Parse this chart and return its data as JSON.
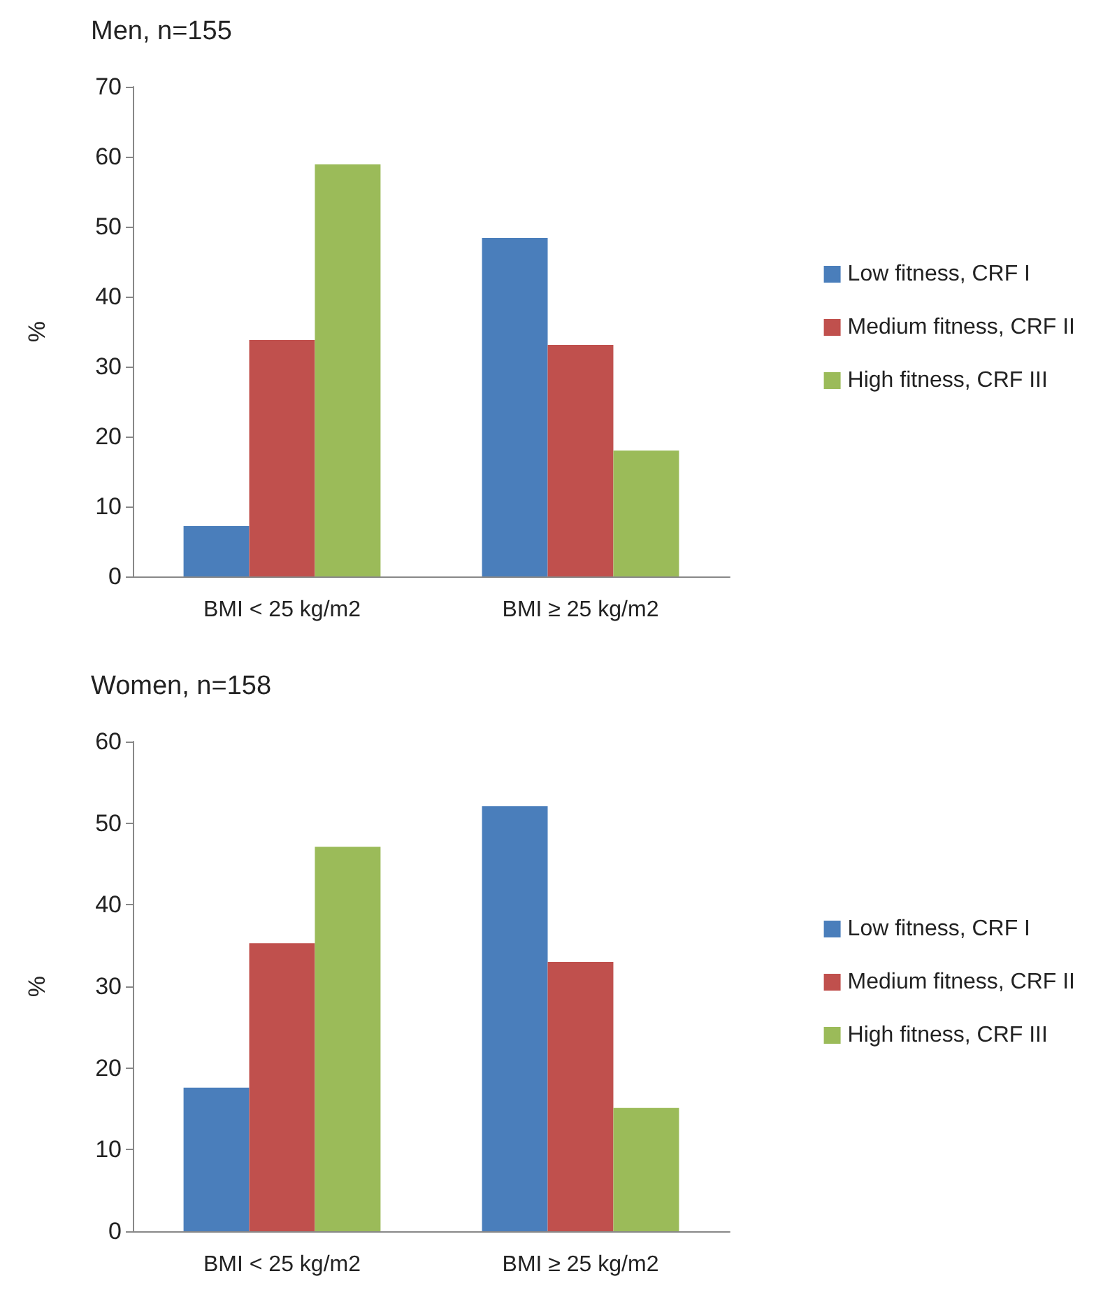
{
  "chart_data": [
    {
      "type": "bar",
      "title": "Men, n=155",
      "ylabel": "%",
      "categories": [
        "BMI < 25 kg/m2",
        "BMI ≥ 25 kg/m2"
      ],
      "series": [
        {
          "name": "Low fitness, CRF I",
          "color": "#4a7ebb",
          "values": [
            7.2,
            48.4
          ]
        },
        {
          "name": "Medium fitness, CRF II",
          "color": "#c0504d",
          "values": [
            33.8,
            33.1
          ]
        },
        {
          "name": "High fitness, CRF III",
          "color": "#9bbb59",
          "values": [
            58.9,
            18.0
          ]
        }
      ],
      "ylim": [
        0,
        70
      ],
      "yticks": [
        0,
        10,
        20,
        30,
        40,
        50,
        60,
        70
      ],
      "grid": false,
      "legend": "right"
    },
    {
      "type": "bar",
      "title": "Women, n=158",
      "ylabel": "%",
      "categories": [
        "BMI < 25 kg/m2",
        "BMI ≥ 25 kg/m2"
      ],
      "series": [
        {
          "name": "Low fitness, CRF I",
          "color": "#4a7ebb",
          "values": [
            17.6,
            52.1
          ]
        },
        {
          "name": "Medium fitness, CRF II",
          "color": "#c0504d",
          "values": [
            35.3,
            33.0
          ]
        },
        {
          "name": "High fitness, CRF III",
          "color": "#9bbb59",
          "values": [
            47.1,
            15.1
          ]
        }
      ],
      "ylim": [
        0,
        60
      ],
      "yticks": [
        0,
        10,
        20,
        30,
        40,
        50,
        60
      ],
      "grid": false,
      "legend": "right"
    }
  ]
}
